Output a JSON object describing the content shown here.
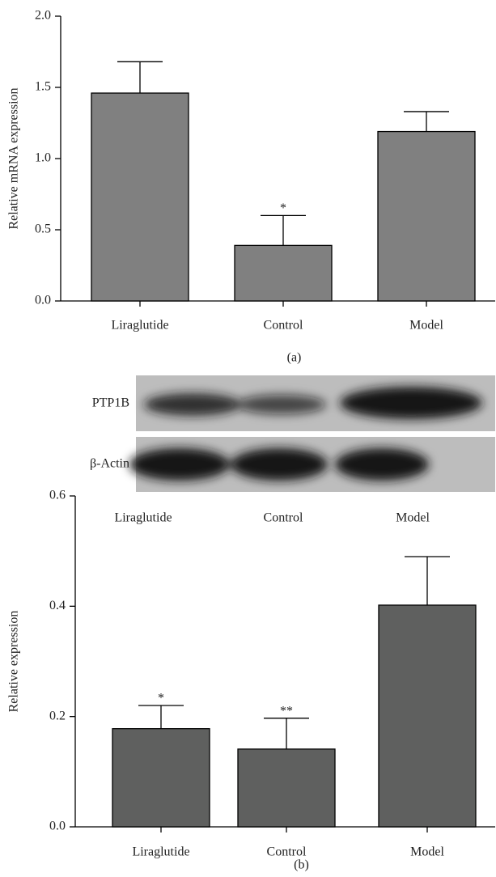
{
  "chart_data": [
    {
      "type": "bar",
      "y_label": "Relative mRNA expression",
      "caption": "(a)",
      "categories": [
        "Liraglutide",
        "Control",
        "Model"
      ],
      "values": [
        1.46,
        0.39,
        1.19
      ],
      "errors": [
        0.22,
        0.21,
        0.14
      ],
      "markers": [
        null,
        "*",
        null
      ],
      "color": "#808080",
      "ylim": [
        0,
        2
      ],
      "yticks": [
        {
          "value": 0,
          "label": "0.0"
        },
        {
          "value": 0.5,
          "label": "0.5"
        },
        {
          "value": 1,
          "label": "1.0"
        },
        {
          "value": 1.5,
          "label": "1.5"
        },
        {
          "value": 2,
          "label": "2.0"
        }
      ]
    },
    {
      "type": "bar",
      "y_label": "Relative expression",
      "caption": "(b)",
      "categories": [
        "Liraglutide",
        "Control",
        "Model"
      ],
      "values": [
        0.178,
        0.141,
        0.402
      ],
      "errors": [
        0.042,
        0.056,
        0.088
      ],
      "markers": [
        "*",
        "**",
        null
      ],
      "color": "#5f605f",
      "ylim": [
        0,
        0.6
      ],
      "yticks": [
        {
          "value": 0,
          "label": "0.0"
        },
        {
          "value": 0.2,
          "label": "0.2"
        },
        {
          "value": 0.4,
          "label": "0.4"
        },
        {
          "value": 0.6,
          "label": "0.6"
        }
      ]
    }
  ],
  "blot": {
    "rows": [
      "PTP1B",
      "β-Actin"
    ],
    "lanes": [
      "Liraglutide",
      "Control",
      "Model"
    ]
  }
}
